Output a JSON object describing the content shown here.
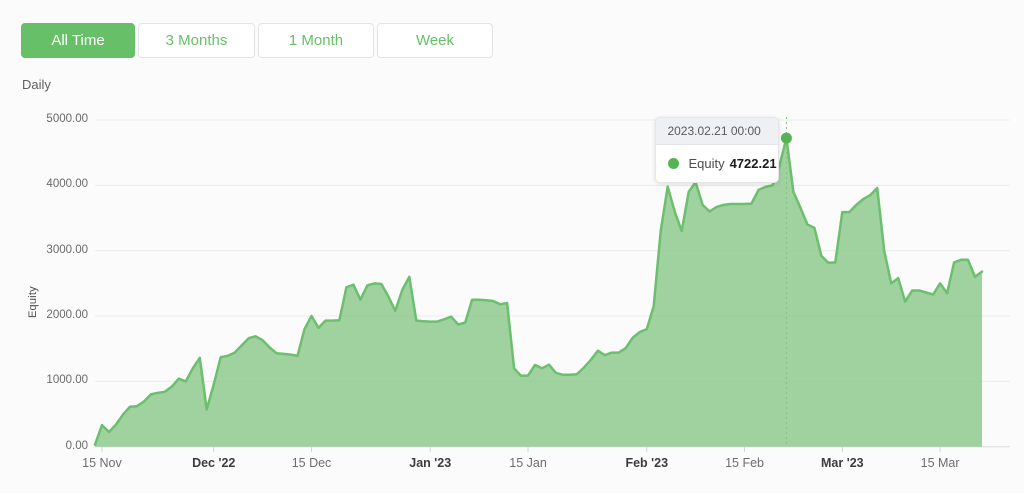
{
  "filters": {
    "items": [
      {
        "label": "All Time",
        "active": true
      },
      {
        "label": "3 Months",
        "active": false
      },
      {
        "label": "1 Month",
        "active": false
      },
      {
        "label": "Week",
        "active": false
      }
    ]
  },
  "period_label": "Daily",
  "colors": {
    "accent_green": "#67bf68",
    "area_fill": "#8fca8f",
    "line_stroke": "#6cbf6e",
    "marker": "#55b356",
    "grid": "#ececec",
    "baseline": "#dcdcdc"
  },
  "tooltip": {
    "header": "2023.02.21 00:00",
    "series": "Equity",
    "value": "4722.21"
  },
  "chart_data": {
    "type": "area",
    "title": "",
    "xlabel": "",
    "ylabel": "Equity",
    "ylim": [
      0,
      5000
    ],
    "grid": true,
    "y_ticks": [
      {
        "label": "5000.00",
        "value": 5000
      },
      {
        "label": "4000.00",
        "value": 4000
      },
      {
        "label": "3000.00",
        "value": 3000
      },
      {
        "label": "2000.00",
        "value": 2000
      },
      {
        "label": "1000.00",
        "value": 1000
      },
      {
        "label": "0.00",
        "value": 0
      }
    ],
    "x_ticks": [
      {
        "label": "15 Nov",
        "day": 1,
        "bold": false
      },
      {
        "label": "Dec '22",
        "day": 17,
        "bold": true
      },
      {
        "label": "15 Dec",
        "day": 31,
        "bold": false
      },
      {
        "label": "Jan '23",
        "day": 48,
        "bold": true
      },
      {
        "label": "15 Jan",
        "day": 62,
        "bold": false
      },
      {
        "label": "Feb '23",
        "day": 79,
        "bold": true
      },
      {
        "label": "15 Feb",
        "day": 93,
        "bold": false
      },
      {
        "label": "Mar '23",
        "day": 107,
        "bold": true
      },
      {
        "label": "15 Mar",
        "day": 121,
        "bold": false
      }
    ],
    "start_date": "2022-11-14",
    "end_date": "2023-03-21",
    "series": [
      {
        "name": "Equity",
        "values": [
          30,
          330,
          225,
          340,
          490,
          610,
          620,
          690,
          800,
          825,
          840,
          920,
          1040,
          1000,
          1200,
          1360,
          570,
          950,
          1370,
          1390,
          1440,
          1550,
          1660,
          1690,
          1630,
          1520,
          1430,
          1420,
          1410,
          1390,
          1800,
          2000,
          1820,
          1930,
          1930,
          1935,
          2440,
          2480,
          2250,
          2470,
          2500,
          2490,
          2300,
          2080,
          2400,
          2600,
          1930,
          1920,
          1915,
          1915,
          1950,
          1990,
          1870,
          1900,
          2250,
          2250,
          2240,
          2230,
          2180,
          2200,
          1200,
          1085,
          1090,
          1250,
          1200,
          1255,
          1130,
          1100,
          1100,
          1110,
          1210,
          1330,
          1470,
          1400,
          1440,
          1440,
          1510,
          1670,
          1755,
          1800,
          2150,
          3300,
          3980,
          3600,
          3300,
          3900,
          4050,
          3700,
          3600,
          3670,
          3700,
          3715,
          3715,
          3715,
          3720,
          3930,
          3976,
          4000,
          4300,
          4722.21,
          3900,
          3660,
          3400,
          3350,
          2920,
          2815,
          2820,
          3590,
          3590,
          3700,
          3790,
          3850,
          3960,
          3000,
          2500,
          2580,
          2220,
          2390,
          2390,
          2360,
          2330,
          2500,
          2350,
          2820,
          2860,
          2860,
          2600,
          2680
        ]
      }
    ],
    "highlight": {
      "day": 99,
      "value": 4722.21,
      "date_label": "2023.02.21 00:00"
    },
    "legend_position": "tooltip-only"
  }
}
